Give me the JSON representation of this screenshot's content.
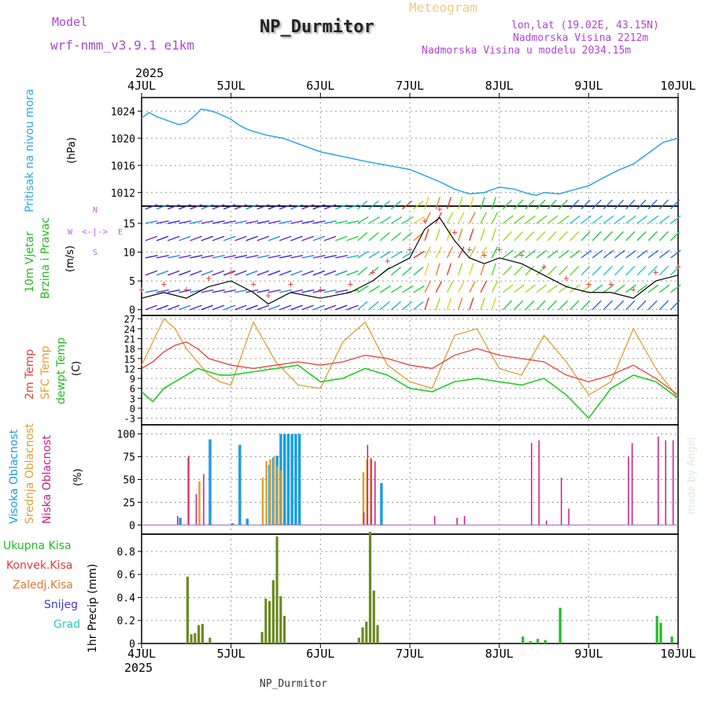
{
  "header": {
    "model_label": "Model",
    "model_name": "wrf-nmm_v3.9.1 e1km",
    "station": "NP_Durmitor",
    "product": "Meteogram",
    "lonlat": "lon,lat (19.02E, 43.15N)",
    "elevation": "Nadmorska Visina 2212m",
    "model_elevation": "Nadmorska Visina u modelu 2034.15m"
  },
  "footer": {
    "station": "NP_Durmitor",
    "credit": "made by Angel"
  },
  "time_axis": {
    "year_top": "2025",
    "year_bottom": "2025",
    "labels": [
      "4JUL",
      "5JUL",
      "6JUL",
      "7JUL",
      "8JUL",
      "9JUL",
      "10JUL"
    ]
  },
  "colors": {
    "pressure": "#2aa7e0",
    "temp2m": "#e8403a",
    "sfc_temp": "#e0a030",
    "dewpoint": "#22cc22",
    "cloud_high": "#1a9ee0",
    "cloud_mid": "#e0a030",
    "cloud_low": "#cc1a88",
    "precip": "#6b8a22"
  },
  "panels": {
    "pressure": {
      "title": "Pritisak na nivou mora",
      "unit": "(hPa)",
      "ticks": [
        "1012",
        "1016",
        "1020",
        "1024"
      ]
    },
    "wind": {
      "title1": "10m Vjetar",
      "title2": "Brzina i Pravac",
      "unit": "(m/s)",
      "ticks": [
        "0",
        "5",
        "10",
        "15"
      ],
      "compass": {
        "n": "N",
        "s": "S",
        "e": "E",
        "w": "W"
      }
    },
    "temp": {
      "title1": "2m Temp",
      "title2": "SFC Temp",
      "title3": "dewpt Temp",
      "unit": "(C)",
      "ticks": [
        "-3",
        "0",
        "3",
        "6",
        "9",
        "12",
        "15",
        "18",
        "21",
        "24",
        "27"
      ]
    },
    "cloud": {
      "title1": "Visoka Oblacnost",
      "title2": "Srednja Oblacnost",
      "title3": "Niska Oblacnost",
      "unit": "(%)",
      "ticks": [
        "0",
        "25",
        "50",
        "75",
        "100"
      ]
    },
    "precip": {
      "legend": [
        "Ukupna Kisa",
        "Konvek.Kisa",
        "Zaledj.Kisa",
        "Snijeg",
        "Grad"
      ],
      "legend_colors": [
        "#22bb22",
        "#e03a3a",
        "#e8762a",
        "#3a3ad8",
        "#2ac8c0"
      ],
      "unit": "1hr Precip (mm)",
      "ticks": [
        "0",
        "0.2",
        "0.4",
        "0.6",
        "0.8"
      ]
    }
  },
  "chart_data": [
    {
      "type": "line",
      "name": "pressure",
      "x_unit": "hours since 4JUL 00",
      "x": [
        0,
        2,
        4,
        6,
        8,
        10,
        12,
        14,
        16,
        18,
        20,
        22,
        24,
        26,
        28,
        30,
        34,
        38,
        44,
        48,
        54,
        60,
        66,
        72,
        76,
        80,
        84,
        88,
        92,
        96,
        100,
        104,
        106,
        108,
        112,
        116,
        120,
        124,
        128,
        132,
        136,
        140,
        144
      ],
      "y": [
        1023.0,
        1023.8,
        1023.2,
        1022.8,
        1022.4,
        1022.0,
        1022.3,
        1023.2,
        1024.3,
        1024.1,
        1023.8,
        1023.3,
        1022.8,
        1022.0,
        1021.4,
        1021.0,
        1020.4,
        1020.0,
        1018.8,
        1018.0,
        1017.3,
        1016.6,
        1016.0,
        1015.4,
        1014.5,
        1013.6,
        1012.5,
        1011.8,
        1012.0,
        1012.8,
        1012.5,
        1011.8,
        1011.6,
        1012.0,
        1011.8,
        1012.4,
        1013.0,
        1014.2,
        1015.3,
        1016.2,
        1017.8,
        1019.4,
        1020.0
      ],
      "ylim": [
        1010,
        1026
      ]
    },
    {
      "type": "line",
      "name": "wind",
      "x_unit": "hours since 4JUL 00",
      "series": [
        {
          "x": [
            0,
            6,
            12,
            18,
            24,
            30,
            34,
            40,
            48,
            56,
            62,
            66,
            72,
            76,
            80,
            84,
            88,
            92,
            96,
            102,
            108,
            114,
            120,
            126,
            132,
            138,
            144
          ],
          "values": [
            2,
            3,
            2,
            4,
            5,
            3,
            1,
            3,
            2,
            3,
            5,
            7,
            9,
            14,
            16,
            12,
            9,
            8,
            9,
            8,
            6,
            4,
            3,
            3,
            2,
            5,
            6
          ]
        }
      ],
      "ylim": [
        -1,
        18
      ]
    },
    {
      "type": "line",
      "name": "temperature",
      "x_unit": "hours since 4JUL 00",
      "series": [
        {
          "x": [
            0,
            3,
            6,
            9,
            12,
            15,
            18,
            21,
            24,
            30,
            36,
            42,
            48,
            54,
            60,
            66,
            72,
            78,
            84,
            90,
            96,
            102,
            108,
            114,
            120,
            126,
            132,
            138,
            144
          ],
          "values": [
            12,
            14,
            17,
            19,
            20,
            18,
            15,
            14,
            13,
            12,
            13,
            14,
            13,
            14,
            16,
            15,
            13,
            12,
            16,
            18,
            16,
            15,
            14,
            10,
            8,
            10,
            13,
            9,
            4
          ]
        },
        {
          "x": [
            0,
            3,
            6,
            9,
            12,
            15,
            18,
            21,
            24,
            30,
            36,
            42,
            48,
            54,
            60,
            66,
            72,
            78,
            84,
            90,
            96,
            102,
            108,
            114,
            120,
            126,
            132,
            138,
            144
          ],
          "values": [
            13,
            20,
            27,
            24,
            18,
            14,
            10,
            8,
            7,
            26,
            14,
            7,
            6,
            20,
            26,
            13,
            8,
            6,
            22,
            24,
            12,
            10,
            22,
            14,
            4,
            8,
            24,
            12,
            3
          ]
        },
        {
          "x": [
            0,
            3,
            6,
            9,
            12,
            15,
            18,
            21,
            24,
            30,
            36,
            42,
            48,
            54,
            60,
            66,
            72,
            78,
            84,
            90,
            96,
            102,
            108,
            114,
            120,
            126,
            132,
            138,
            144
          ],
          "values": [
            5,
            2,
            6,
            8,
            10,
            12,
            11,
            10,
            10,
            11,
            12,
            13,
            8,
            9,
            12,
            10,
            6,
            5,
            8,
            9,
            8,
            7,
            9,
            4,
            -3,
            6,
            10,
            8,
            3
          ]
        }
      ],
      "ylim": [
        -5,
        28
      ]
    },
    {
      "type": "bar",
      "name": "cloud_cover",
      "x_unit": "hours since 4JUL 00",
      "series": [
        {
          "x": [
            10,
            18,
            24,
            26,
            28,
            34,
            35,
            36,
            37,
            38,
            39,
            40,
            41,
            42,
            64
          ],
          "values": [
            8,
            94,
            2,
            88,
            7,
            66,
            74,
            76,
            100,
            100,
            100,
            100,
            100,
            100,
            46
          ]
        },
        {
          "x": [
            12,
            15,
            32,
            33,
            34,
            35,
            36,
            37,
            59,
            60,
            61
          ],
          "values": [
            74,
            48,
            52,
            70,
            72,
            75,
            65,
            60,
            58,
            72,
            74
          ]
        },
        {
          "x": [
            9,
            12,
            14,
            16,
            59,
            60,
            61,
            62,
            78,
            84,
            86,
            104,
            106,
            108,
            112,
            114,
            130,
            131,
            138,
            140,
            142
          ],
          "values": [
            10,
            76,
            34,
            56,
            14,
            88,
            72,
            70,
            10,
            8,
            10,
            90,
            93,
            5,
            52,
            18,
            75,
            90,
            97,
            93,
            93
          ]
        }
      ],
      "ylim": [
        0,
        100
      ]
    },
    {
      "type": "bar",
      "name": "precipitation",
      "x_unit": "hours since 4JUL 00",
      "series": [
        {
          "x": [
            12,
            13,
            14,
            15,
            16,
            18,
            32,
            33,
            34,
            35,
            36,
            37,
            38,
            58,
            59,
            60,
            61,
            62,
            63
          ],
          "values": [
            0.58,
            0.08,
            0.09,
            0.16,
            0.17,
            0.05,
            0.1,
            0.39,
            0.37,
            0.55,
            0.93,
            0.41,
            0.24,
            0.05,
            0.14,
            0.19,
            0.97,
            0.46,
            0.16
          ]
        },
        {
          "x": [
            102,
            104,
            106,
            108,
            112,
            138,
            139,
            142
          ],
          "values": [
            0.06,
            0.02,
            0.04,
            0.03,
            0.31,
            0.24,
            0.18,
            0.06
          ]
        }
      ],
      "ylim": [
        0,
        1
      ]
    }
  ]
}
